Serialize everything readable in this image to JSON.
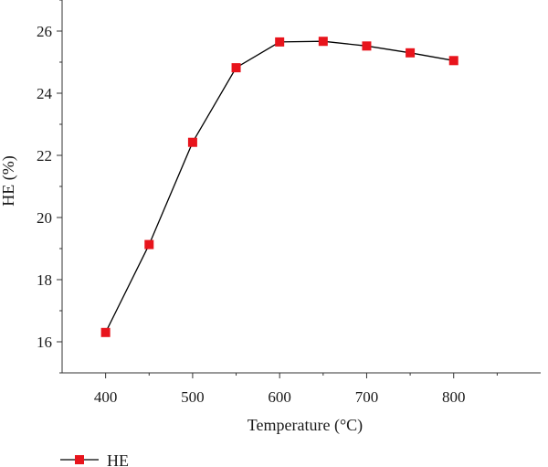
{
  "chart_data": {
    "type": "line",
    "title": "",
    "xlabel": "Temperature (°C)",
    "ylabel": "HE (%)",
    "xlim": [
      350,
      900
    ],
    "ylim": [
      15,
      27
    ],
    "xticks": [
      400,
      500,
      600,
      700,
      800
    ],
    "yticks": [
      16,
      18,
      20,
      22,
      24,
      26
    ],
    "x_minor_ticks": [
      450,
      550,
      650,
      750,
      850
    ],
    "y_minor_ticks": [
      15,
      17,
      19,
      21,
      23,
      25,
      27
    ],
    "grid": false,
    "legend_position": "bottom-left",
    "series": [
      {
        "name": "HE",
        "marker": "square",
        "marker_color": "#e8141c",
        "line_color": "#000000",
        "x": [
          400,
          450,
          500,
          550,
          600,
          650,
          700,
          750,
          800
        ],
        "y": [
          16.3,
          19.13,
          22.42,
          24.82,
          25.65,
          25.67,
          25.52,
          25.3,
          25.05
        ]
      }
    ]
  }
}
